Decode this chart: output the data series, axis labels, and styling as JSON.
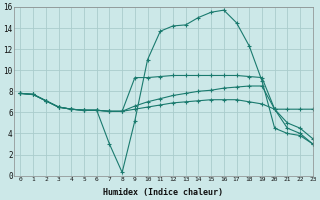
{
  "xlabel": "Humidex (Indice chaleur)",
  "bg_color": "#cce8e8",
  "grid_color": "#aacccc",
  "line_color": "#1a7a6e",
  "xlim": [
    -0.5,
    23
  ],
  "ylim": [
    0,
    16
  ],
  "xtick_labels": [
    "0",
    "1",
    "2",
    "3",
    "4",
    "5",
    "6",
    "7",
    "8",
    "9",
    "10",
    "11",
    "12",
    "13",
    "14",
    "15",
    "16",
    "17",
    "18",
    "19",
    "20",
    "21",
    "22",
    "23"
  ],
  "xtick_pos": [
    0,
    1,
    2,
    3,
    4,
    5,
    6,
    7,
    8,
    9,
    10,
    11,
    12,
    13,
    14,
    15,
    16,
    17,
    18,
    19,
    20,
    21,
    22,
    23
  ],
  "ytick_pos": [
    0,
    2,
    4,
    6,
    8,
    10,
    12,
    14,
    16
  ],
  "line1_x": [
    0,
    1,
    2,
    3,
    4,
    5,
    6,
    7,
    8,
    9,
    10,
    11,
    12,
    13,
    14,
    15,
    16,
    17,
    18,
    19,
    20,
    21,
    22,
    23
  ],
  "line1_y": [
    7.8,
    7.7,
    7.1,
    6.5,
    6.3,
    6.2,
    6.2,
    6.1,
    6.1,
    9.3,
    9.3,
    9.4,
    9.5,
    9.5,
    9.5,
    9.5,
    9.5,
    9.5,
    9.4,
    9.3,
    6.3,
    6.3,
    6.3,
    6.3
  ],
  "line2_x": [
    0,
    1,
    2,
    3,
    4,
    5,
    6,
    7,
    8,
    9,
    10,
    11,
    12,
    13,
    14,
    15,
    16,
    17,
    18,
    19,
    20,
    21,
    22,
    23
  ],
  "line2_y": [
    7.8,
    7.7,
    7.1,
    6.5,
    6.3,
    6.2,
    6.2,
    3.0,
    0.3,
    5.2,
    11.0,
    13.7,
    14.2,
    14.3,
    15.0,
    15.5,
    15.7,
    14.5,
    12.3,
    9.0,
    4.5,
    4.0,
    3.8,
    3.0
  ],
  "line3_x": [
    0,
    1,
    2,
    3,
    4,
    5,
    6,
    7,
    8,
    9,
    10,
    11,
    12,
    13,
    14,
    15,
    16,
    17,
    18,
    19,
    20,
    21,
    22,
    23
  ],
  "line3_y": [
    7.8,
    7.7,
    7.1,
    6.5,
    6.3,
    6.2,
    6.2,
    6.1,
    6.1,
    6.6,
    7.0,
    7.3,
    7.6,
    7.8,
    8.0,
    8.1,
    8.3,
    8.4,
    8.5,
    8.5,
    6.3,
    4.5,
    4.0,
    3.0
  ],
  "line4_x": [
    0,
    1,
    2,
    3,
    4,
    5,
    6,
    7,
    8,
    9,
    10,
    11,
    12,
    13,
    14,
    15,
    16,
    17,
    18,
    19,
    20,
    21,
    22,
    23
  ],
  "line4_y": [
    7.8,
    7.7,
    7.1,
    6.5,
    6.3,
    6.2,
    6.2,
    6.1,
    6.1,
    6.3,
    6.5,
    6.7,
    6.9,
    7.0,
    7.1,
    7.2,
    7.2,
    7.2,
    7.0,
    6.8,
    6.3,
    5.0,
    4.5,
    3.5
  ]
}
